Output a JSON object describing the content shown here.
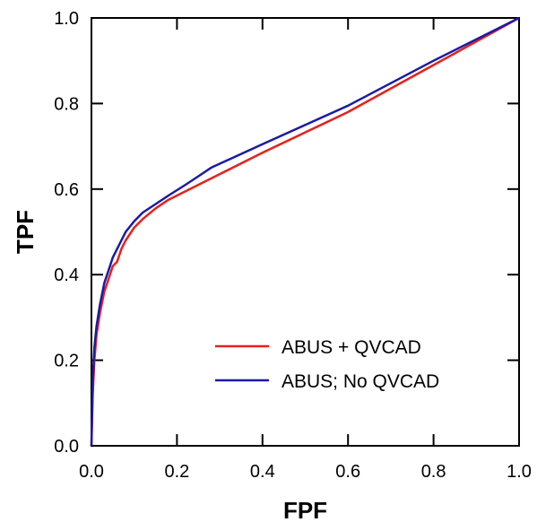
{
  "chart_data": {
    "type": "line",
    "title": "",
    "xlabel": "FPF",
    "ylabel": "TPF",
    "xlim": [
      0.0,
      1.0
    ],
    "ylim": [
      0.0,
      1.0
    ],
    "x_ticks": [
      "0.0",
      "0.2",
      "0.4",
      "0.6",
      "0.8",
      "1.0"
    ],
    "y_ticks": [
      "0.0",
      "0.2",
      "0.4",
      "0.6",
      "0.8",
      "1.0"
    ],
    "grid": false,
    "legend_position": "bottom-right",
    "series": [
      {
        "name": "ABUS + QVCAD",
        "color": "#e8201a",
        "x": [
          0.0,
          0.003,
          0.007,
          0.012,
          0.02,
          0.03,
          0.04,
          0.05,
          0.06,
          0.07,
          0.08,
          0.1,
          0.12,
          0.15,
          0.18,
          0.22,
          0.28,
          0.4,
          0.6,
          0.8,
          1.0
        ],
        "y": [
          0.0,
          0.12,
          0.2,
          0.26,
          0.31,
          0.36,
          0.39,
          0.42,
          0.43,
          0.46,
          0.48,
          0.51,
          0.53,
          0.555,
          0.575,
          0.595,
          0.625,
          0.685,
          0.78,
          0.89,
          1.0
        ]
      },
      {
        "name": "ABUS; No QVCAD",
        "color": "#1a1aa8",
        "x": [
          0.0,
          0.003,
          0.007,
          0.012,
          0.02,
          0.03,
          0.04,
          0.05,
          0.06,
          0.07,
          0.08,
          0.1,
          0.12,
          0.15,
          0.18,
          0.22,
          0.25,
          0.28,
          0.4,
          0.6,
          0.8,
          1.0
        ],
        "y": [
          0.0,
          0.15,
          0.23,
          0.28,
          0.33,
          0.38,
          0.41,
          0.44,
          0.46,
          0.48,
          0.5,
          0.525,
          0.545,
          0.565,
          0.585,
          0.61,
          0.63,
          0.65,
          0.705,
          0.795,
          0.9,
          1.0
        ]
      }
    ]
  }
}
